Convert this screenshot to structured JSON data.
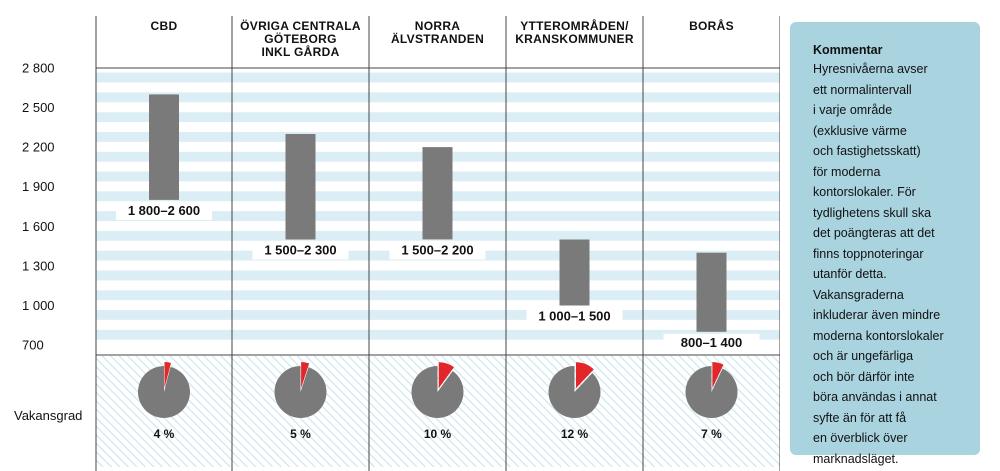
{
  "chart_data": {
    "type": "range-bar",
    "categories": [
      {
        "name": "CBD",
        "min": 1800,
        "max": 2600,
        "range_label": "1 800–2 600",
        "vacancy_percent": 4,
        "vacancy_label": "4 %"
      },
      {
        "name": "ÖVRIGA CENTRALA GÖTEBORG INKL GÅRDA",
        "min": 1500,
        "max": 2300,
        "range_label": "1 500–2 300",
        "vacancy_percent": 5,
        "vacancy_label": "5 %"
      },
      {
        "name": "NORRA ÄLVSTRANDEN",
        "min": 1500,
        "max": 2200,
        "range_label": "1 500–2 200",
        "vacancy_percent": 10,
        "vacancy_label": "10 %"
      },
      {
        "name": "YTTEROMRÅDEN/ KRANSKOMMUNER",
        "min": 1000,
        "max": 1500,
        "range_label": "1 000–1 500",
        "vacancy_percent": 12,
        "vacancy_label": "12 %"
      },
      {
        "name": "BORÅS",
        "min": 800,
        "max": 1400,
        "range_label": "800–1 400",
        "vacancy_percent": 7,
        "vacancy_label": "7 %"
      }
    ],
    "header_lines": [
      [
        "CBD"
      ],
      [
        "ÖVRIGA CENTRALA",
        "GÖTEBORG",
        "INKL GÅRDA"
      ],
      [
        "NORRA",
        "ÄLVSTRANDEN"
      ],
      [
        "YTTEROMRÅDEN/",
        "KRANSKOMMUNER"
      ],
      [
        "BORÅS"
      ]
    ],
    "y_ticks": [
      700,
      1000,
      1300,
      1600,
      1900,
      2200,
      2500,
      2800
    ],
    "y_tick_labels": [
      "700",
      "1 000",
      "1 300",
      "1 600",
      "1 900",
      "2 200",
      "2 500",
      "2 800"
    ],
    "ylim": [
      700,
      2800
    ],
    "vacancy_row_label": "Vakansgrad",
    "colors": {
      "bar": "#7a7a7a",
      "pie_main": "#7a7a7a",
      "pie_slice": "#e3262a",
      "stripe": "#dceef5",
      "grid": "#444444",
      "comment_bg": "#a9d3df"
    }
  },
  "comment": {
    "title": "Kommentar",
    "lines": [
      "Hyresnivåerna avser",
      "ett normalintervall",
      "i varje område",
      "(exklusive värme",
      "och fastighetsskatt)",
      "för moderna",
      "kontorslokaler. För",
      "tydlighetens skull ska",
      "det poängteras att det",
      "finns toppnoteringar",
      "utanför detta.",
      "Vakansgraderna",
      "inkluderar även mindre",
      "moderna kontorslokaler",
      "och är ungefärliga",
      "och bör därför inte",
      "böra användas i annat",
      "syfte än för att få",
      "en överblick över",
      "marknadsläget."
    ]
  }
}
